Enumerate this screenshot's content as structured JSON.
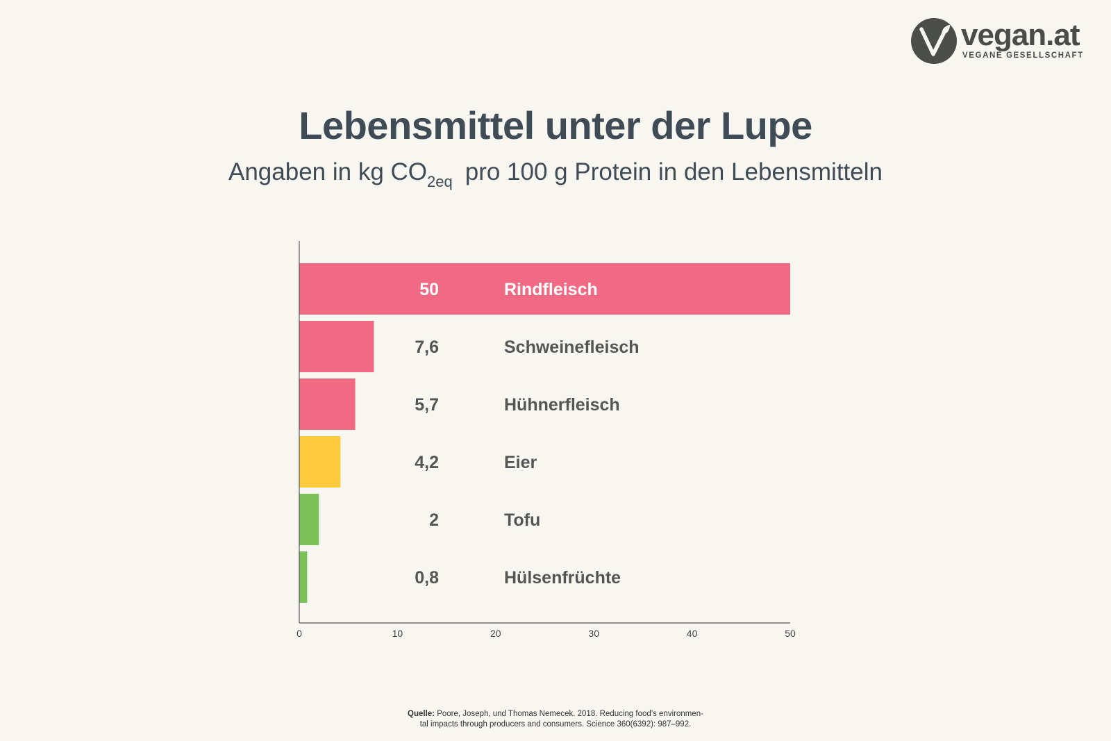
{
  "brand": {
    "name": "vegan.at",
    "subtitle": "VEGANE GESELLSCHAFT",
    "color": "#4a4d49"
  },
  "header": {
    "title": "Lebensmittel unter der Lupe",
    "subtitle_pre": "Angaben in kg CO",
    "subtitle_sub": "2eq",
    "subtitle_post": "pro 100 g Protein in den Lebensmitteln"
  },
  "chart_data": {
    "type": "bar",
    "orientation": "horizontal",
    "title": "",
    "xlabel": "",
    "ylabel": "",
    "xlim": [
      0,
      50
    ],
    "ticks": [
      0,
      10,
      20,
      30,
      40,
      50
    ],
    "grid": false,
    "categories": [
      "Rindfleisch",
      "Schweinefleisch",
      "Hühnerfleisch",
      "Eier",
      "Tofu",
      "Hülsenfrüchte"
    ],
    "value_labels": [
      "50",
      "7,6",
      "5,7",
      "4,2",
      "2",
      "0,8"
    ],
    "values": [
      50,
      7.6,
      5.7,
      4.2,
      2,
      0.8
    ],
    "colors": [
      "#ef6a82",
      "#ef6a82",
      "#ef6a82",
      "#fdc93f",
      "#7ac255",
      "#7ac255"
    ]
  },
  "source": {
    "label": "Quelle:",
    "line1": "Poore, Joseph, und Thomas Nemecek. 2018. Reducing food’s environmen-",
    "line2": "tal impacts through producers and consumers. Science 360(6392): 987–992."
  }
}
